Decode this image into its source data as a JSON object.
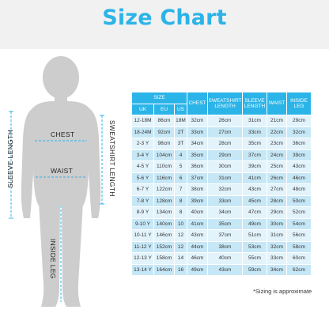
{
  "title": "Size Chart",
  "figure_labels": {
    "sleeve_length": "SLEEVE LENGTH",
    "chest": "CHEST",
    "sweatshirt_length": "SWEATSHIRT LENGTH",
    "waist": "WAIST",
    "inside_leg": "INSIDE LEG"
  },
  "table": {
    "size_header": "SIZE",
    "size_columns": [
      "UK",
      "EU",
      "US"
    ],
    "measure_columns": {
      "chest": "CHEST",
      "sweatshirt": "SWEATSHIRT LENGTH",
      "sleeve": "SLEEVE LENGTH",
      "waist": "WAIST",
      "inside_leg": "INSIDE LEG"
    },
    "rows": [
      {
        "uk": "12-18M",
        "eu": "86cm",
        "us": "18M",
        "chest": "32cm",
        "sweat": "26cm",
        "sleeve": "31cm",
        "waist": "21cm",
        "inside": "29cm"
      },
      {
        "uk": "18-24M",
        "eu": "92cm",
        "us": "2T",
        "chest": "33cm",
        "sweat": "27cm",
        "sleeve": "33cm",
        "waist": "22cm",
        "inside": "32cm"
      },
      {
        "uk": "2-3 Y",
        "eu": "98cm",
        "us": "3T",
        "chest": "34cm",
        "sweat": "28cm",
        "sleeve": "35cm",
        "waist": "23cm",
        "inside": "36cm"
      },
      {
        "uk": "3-4 Y",
        "eu": "104cm",
        "us": "4",
        "chest": "35cm",
        "sweat": "29cm",
        "sleeve": "37cm",
        "waist": "24cm",
        "inside": "39cm"
      },
      {
        "uk": "4-5 Y",
        "eu": "110cm",
        "us": "5",
        "chest": "36cm",
        "sweat": "30cm",
        "sleeve": "39cm",
        "waist": "25cm",
        "inside": "43cm"
      },
      {
        "uk": "5-6 Y",
        "eu": "116cm",
        "us": "6",
        "chest": "37cm",
        "sweat": "31cm",
        "sleeve": "41cm",
        "waist": "26cm",
        "inside": "46cm"
      },
      {
        "uk": "6-7 Y",
        "eu": "122cm",
        "us": "7",
        "chest": "38cm",
        "sweat": "32cm",
        "sleeve": "43cm",
        "waist": "27cm",
        "inside": "48cm"
      },
      {
        "uk": "7-8 Y",
        "eu": "128cm",
        "us": "8",
        "chest": "39cm",
        "sweat": "33cm",
        "sleeve": "45cm",
        "waist": "28cm",
        "inside": "50cm"
      },
      {
        "uk": "8-9 Y",
        "eu": "134cm",
        "us": "8",
        "chest": "40cm",
        "sweat": "34cm",
        "sleeve": "47cm",
        "waist": "29cm",
        "inside": "52cm"
      },
      {
        "uk": "9-10 Y",
        "eu": "140cm",
        "us": "10",
        "chest": "41cm",
        "sweat": "35cm",
        "sleeve": "49cm",
        "waist": "30cm",
        "inside": "54cm"
      },
      {
        "uk": "10-11 Y",
        "eu": "146cm",
        "us": "12",
        "chest": "43cm",
        "sweat": "37cm",
        "sleeve": "51cm",
        "waist": "31cm",
        "inside": "56cm"
      },
      {
        "uk": "11-12 Y",
        "eu": "152cm",
        "us": "12",
        "chest": "44cm",
        "sweat": "38cm",
        "sleeve": "53cm",
        "waist": "32cm",
        "inside": "58cm"
      },
      {
        "uk": "12-13 Y",
        "eu": "158cm",
        "us": "14",
        "chest": "46cm",
        "sweat": "40cm",
        "sleeve": "55cm",
        "waist": "33cm",
        "inside": "60cm"
      },
      {
        "uk": "13-14 Y",
        "eu": "164cm",
        "us": "16",
        "chest": "49cm",
        "sweat": "43cm",
        "sleeve": "59cm",
        "waist": "34cm",
        "inside": "62cm"
      }
    ]
  },
  "note": "*Sizing is approximate",
  "colors": {
    "accent": "#2bb4e8",
    "row_light": "#e3f3fb",
    "row_dark": "#c6e7f6",
    "silhouette": "#cdcdce",
    "title_band": "#f1f1f2"
  }
}
